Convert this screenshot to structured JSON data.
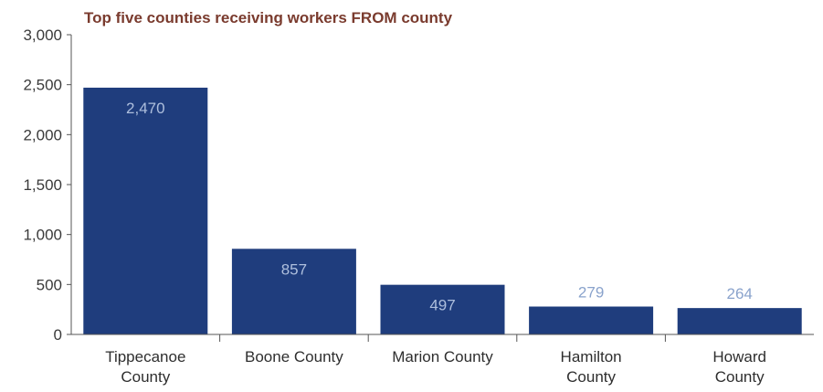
{
  "chart_data": {
    "type": "bar",
    "title": "Top five counties receiving workers FROM county",
    "categories": [
      [
        "Tippecanoe",
        "County"
      ],
      [
        "Boone County"
      ],
      [
        "Marion County"
      ],
      [
        "Hamilton",
        "County"
      ],
      [
        "Howard",
        "County"
      ]
    ],
    "values": [
      2470,
      857,
      497,
      279,
      264
    ],
    "value_labels": [
      "2,470",
      "857",
      "497",
      "279",
      "264"
    ],
    "y_ticks": [
      "0",
      "500",
      "1,000",
      "1,500",
      "2,000",
      "2,500",
      "3,000"
    ],
    "ylim": [
      0,
      3000
    ],
    "grid": false,
    "legend": "none",
    "colors": {
      "bar": "#1f3d7d",
      "label_inside": "#aebfdd",
      "label_outside": "#8aa3cc",
      "title": "#7a3b2e",
      "axis": "#555555"
    }
  }
}
